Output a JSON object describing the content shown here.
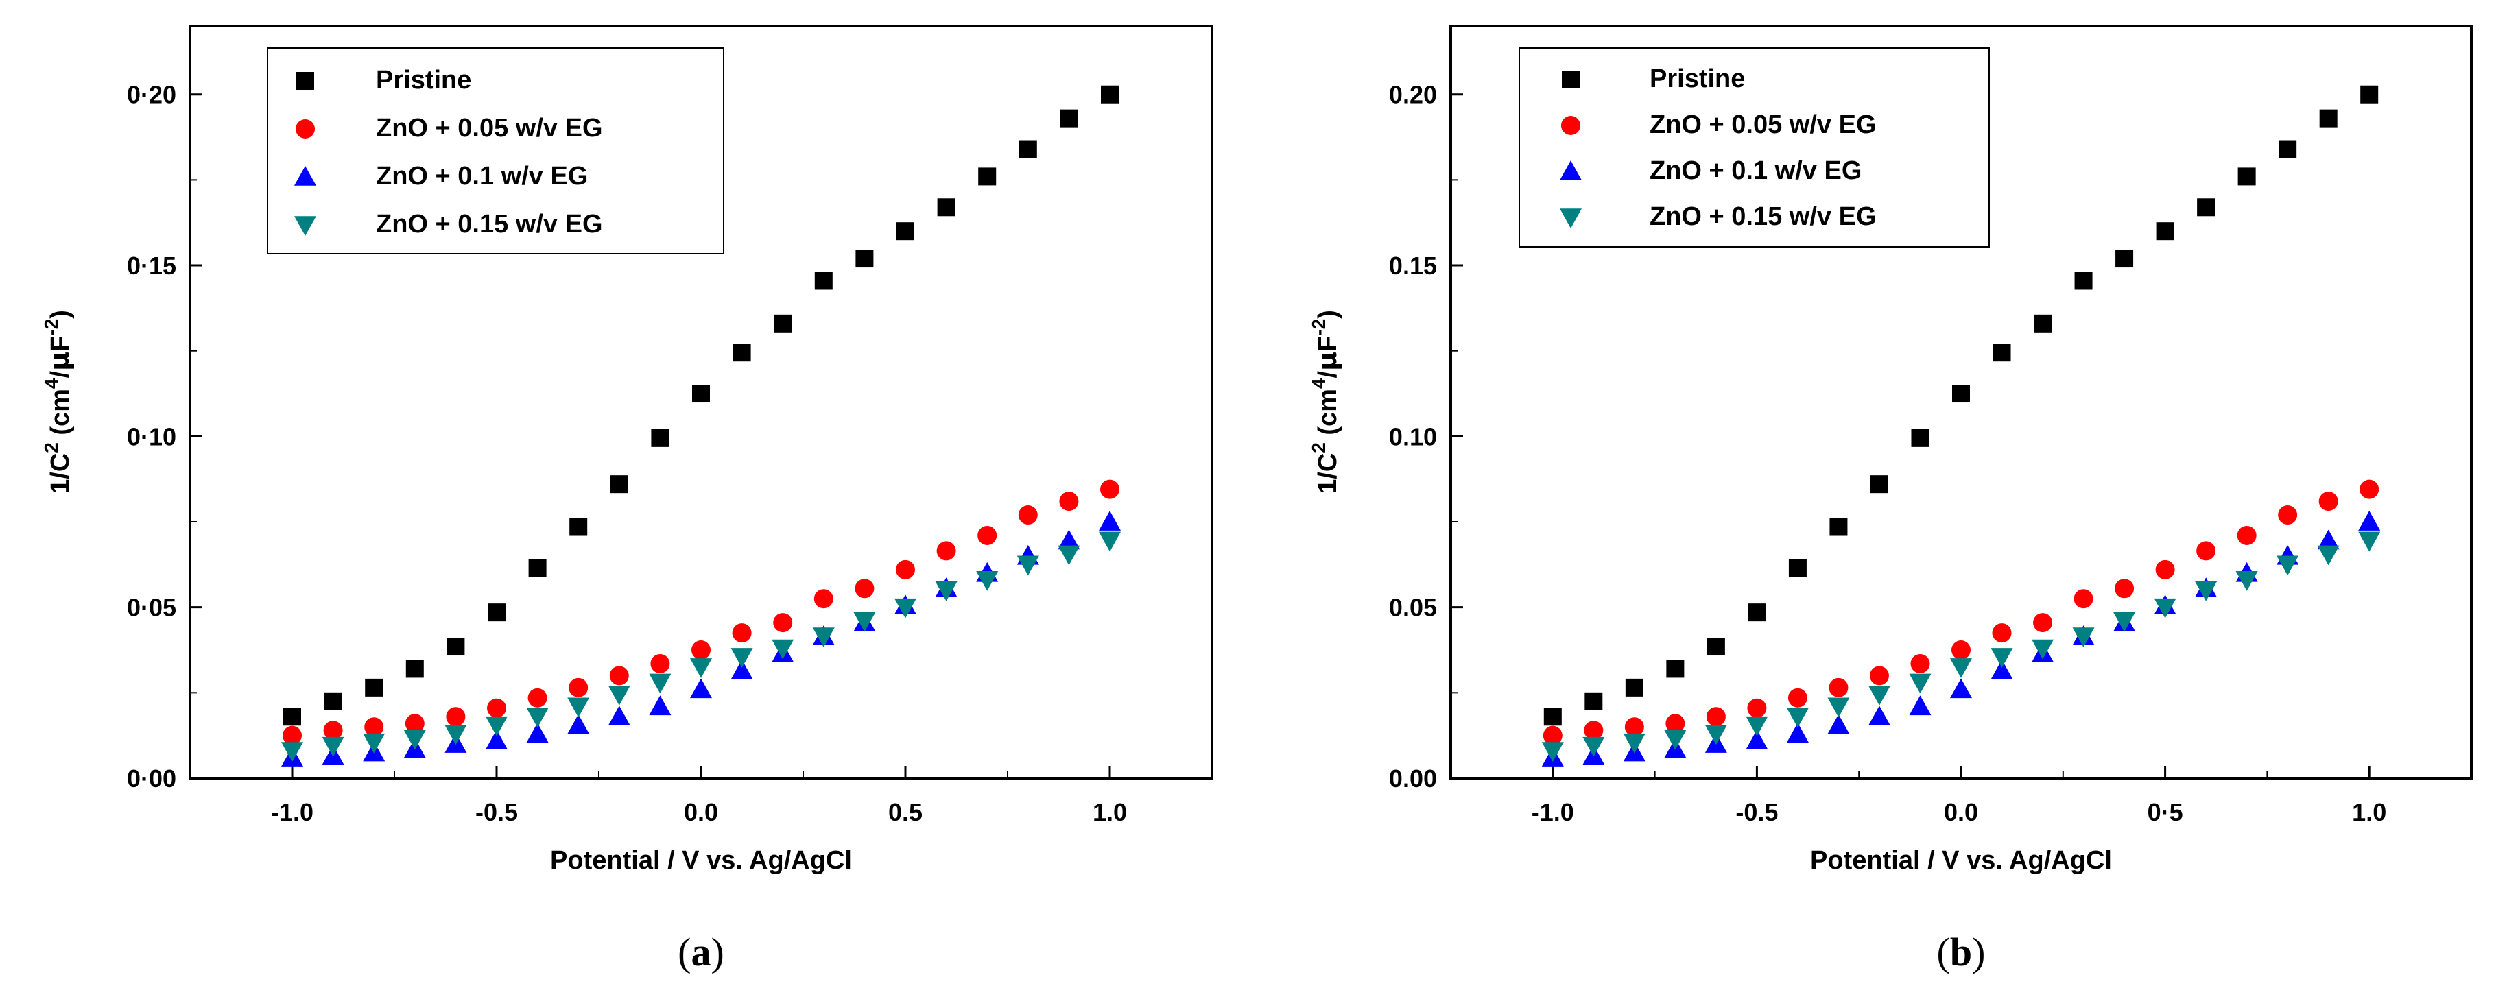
{
  "figure": {
    "panel_labels": [
      {
        "open": "(",
        "letter": "a",
        "close": ")"
      },
      {
        "open": "(",
        "letter": "b",
        "close": ")"
      }
    ]
  },
  "chart_data": [
    {
      "type": "scatter",
      "panel": "a",
      "title": "",
      "xlabel": "Potential / V vs. Ag/AgCl",
      "ylabel_parts": {
        "base": "1/C",
        "sup1": "2",
        "unit_a": "(cm",
        "sup2": "4",
        "unit_b": "/",
        "mu": "μ",
        "unit_c": "F",
        "sup3": "-2",
        "unit_d": ")"
      },
      "xlim": [
        -1.25,
        1.25
      ],
      "ylim": [
        0,
        0.22
      ],
      "xticks": [
        -1.0,
        -0.5,
        0.0,
        0.5,
        1.0
      ],
      "xtick_labels": [
        "-1.0",
        "-0.5",
        "0.0",
        "0.5",
        "1.0"
      ],
      "yticks": [
        0.0,
        0.05,
        0.1,
        0.15,
        0.2
      ],
      "ytick_labels": [
        "0·00",
        "0·05",
        "0·10",
        "0·15",
        "0·20"
      ],
      "legend_position": "top-left",
      "x": [
        -1.0,
        -0.9,
        -0.8,
        -0.7,
        -0.6,
        -0.5,
        -0.4,
        -0.3,
        -0.2,
        -0.1,
        0.0,
        0.1,
        0.2,
        0.3,
        0.4,
        0.5,
        0.6,
        0.7,
        0.8,
        0.9,
        1.0
      ],
      "series": [
        {
          "name": "Pristine",
          "marker": "square",
          "color": "#000000",
          "values": [
            0.018,
            0.0225,
            0.0265,
            0.032,
            0.0385,
            0.0485,
            0.0615,
            0.0735,
            0.086,
            0.0995,
            0.1125,
            0.1245,
            0.133,
            0.1455,
            0.152,
            0.16,
            0.167,
            0.176,
            0.184,
            0.193,
            0.2
          ]
        },
        {
          "name": "ZnO + 0.05 w/v EG",
          "marker": "circle",
          "color": "#ff0000",
          "values": [
            0.0125,
            0.014,
            0.015,
            0.016,
            0.018,
            0.0205,
            0.0235,
            0.0265,
            0.03,
            0.0335,
            0.0375,
            0.0425,
            0.0455,
            0.0525,
            0.0555,
            0.061,
            0.0665,
            0.071,
            0.077,
            0.081,
            0.0845
          ]
        },
        {
          "name": "ZnO + 0.1 w/v EG",
          "marker": "triangle-up",
          "color": "#0000ff",
          "values": [
            0.006,
            0.0065,
            0.0075,
            0.0085,
            0.01,
            0.011,
            0.013,
            0.0155,
            0.018,
            0.021,
            0.026,
            0.0315,
            0.0365,
            0.0415,
            0.0455,
            0.0505,
            0.0555,
            0.06,
            0.065,
            0.0695,
            0.075
          ]
        },
        {
          "name": "ZnO + 0.15 w/v EG",
          "marker": "triangle-down",
          "color": "#008080",
          "values": [
            0.008,
            0.0095,
            0.0105,
            0.0115,
            0.013,
            0.0155,
            0.018,
            0.021,
            0.0245,
            0.028,
            0.0325,
            0.0355,
            0.038,
            0.0415,
            0.046,
            0.05,
            0.055,
            0.058,
            0.0625,
            0.0655,
            0.0695
          ]
        }
      ]
    },
    {
      "type": "scatter",
      "panel": "b",
      "title": "",
      "xlabel": "Potential / V vs. Ag/AgCl",
      "ylabel_parts": {
        "base": "1/C",
        "sup1": "2",
        "unit_a": "(cm",
        "sup2": "4",
        "unit_b": "/",
        "mu": "μ",
        "unit_c": "F",
        "sup3": "-2",
        "unit_d": ")"
      },
      "xlim": [
        -1.25,
        1.25
      ],
      "ylim": [
        0,
        0.22
      ],
      "xticks": [
        -1.0,
        -0.5,
        0.0,
        0.5,
        1.0
      ],
      "xtick_labels": [
        "-1.0",
        "-0.5",
        "0.0",
        "0·5",
        "1.0"
      ],
      "yticks": [
        0.0,
        0.05,
        0.1,
        0.15,
        0.2
      ],
      "ytick_labels": [
        "0.00",
        "0.05",
        "0.10",
        "0.15",
        "0.20"
      ],
      "legend_position": "top-left",
      "x": [
        -1.0,
        -0.9,
        -0.8,
        -0.7,
        -0.6,
        -0.5,
        -0.4,
        -0.3,
        -0.2,
        -0.1,
        0.0,
        0.1,
        0.2,
        0.3,
        0.4,
        0.5,
        0.6,
        0.7,
        0.8,
        0.9,
        1.0
      ],
      "series": [
        {
          "name": "Pristine",
          "marker": "square",
          "color": "#000000",
          "values": [
            0.018,
            0.0225,
            0.0265,
            0.032,
            0.0385,
            0.0485,
            0.0615,
            0.0735,
            0.086,
            0.0995,
            0.1125,
            0.1245,
            0.133,
            0.1455,
            0.152,
            0.16,
            0.167,
            0.176,
            0.184,
            0.193,
            0.2
          ]
        },
        {
          "name": "ZnO + 0.05 w/v EG",
          "marker": "circle",
          "color": "#ff0000",
          "values": [
            0.0125,
            0.014,
            0.015,
            0.016,
            0.018,
            0.0205,
            0.0235,
            0.0265,
            0.03,
            0.0335,
            0.0375,
            0.0425,
            0.0455,
            0.0525,
            0.0555,
            0.061,
            0.0665,
            0.071,
            0.077,
            0.081,
            0.0845
          ]
        },
        {
          "name": "ZnO + 0.1 w/v EG",
          "marker": "triangle-up",
          "color": "#0000ff",
          "values": [
            0.006,
            0.0065,
            0.0075,
            0.0085,
            0.01,
            0.011,
            0.013,
            0.0155,
            0.018,
            0.021,
            0.026,
            0.0315,
            0.0365,
            0.0415,
            0.0455,
            0.0505,
            0.0555,
            0.06,
            0.065,
            0.0695,
            0.075
          ]
        },
        {
          "name": "ZnO + 0.15 w/v EG",
          "marker": "triangle-down",
          "color": "#008080",
          "values": [
            0.008,
            0.0095,
            0.0105,
            0.0115,
            0.013,
            0.0155,
            0.018,
            0.021,
            0.0245,
            0.028,
            0.0325,
            0.0355,
            0.038,
            0.0415,
            0.046,
            0.05,
            0.055,
            0.058,
            0.0625,
            0.0655,
            0.0695
          ]
        }
      ]
    }
  ]
}
